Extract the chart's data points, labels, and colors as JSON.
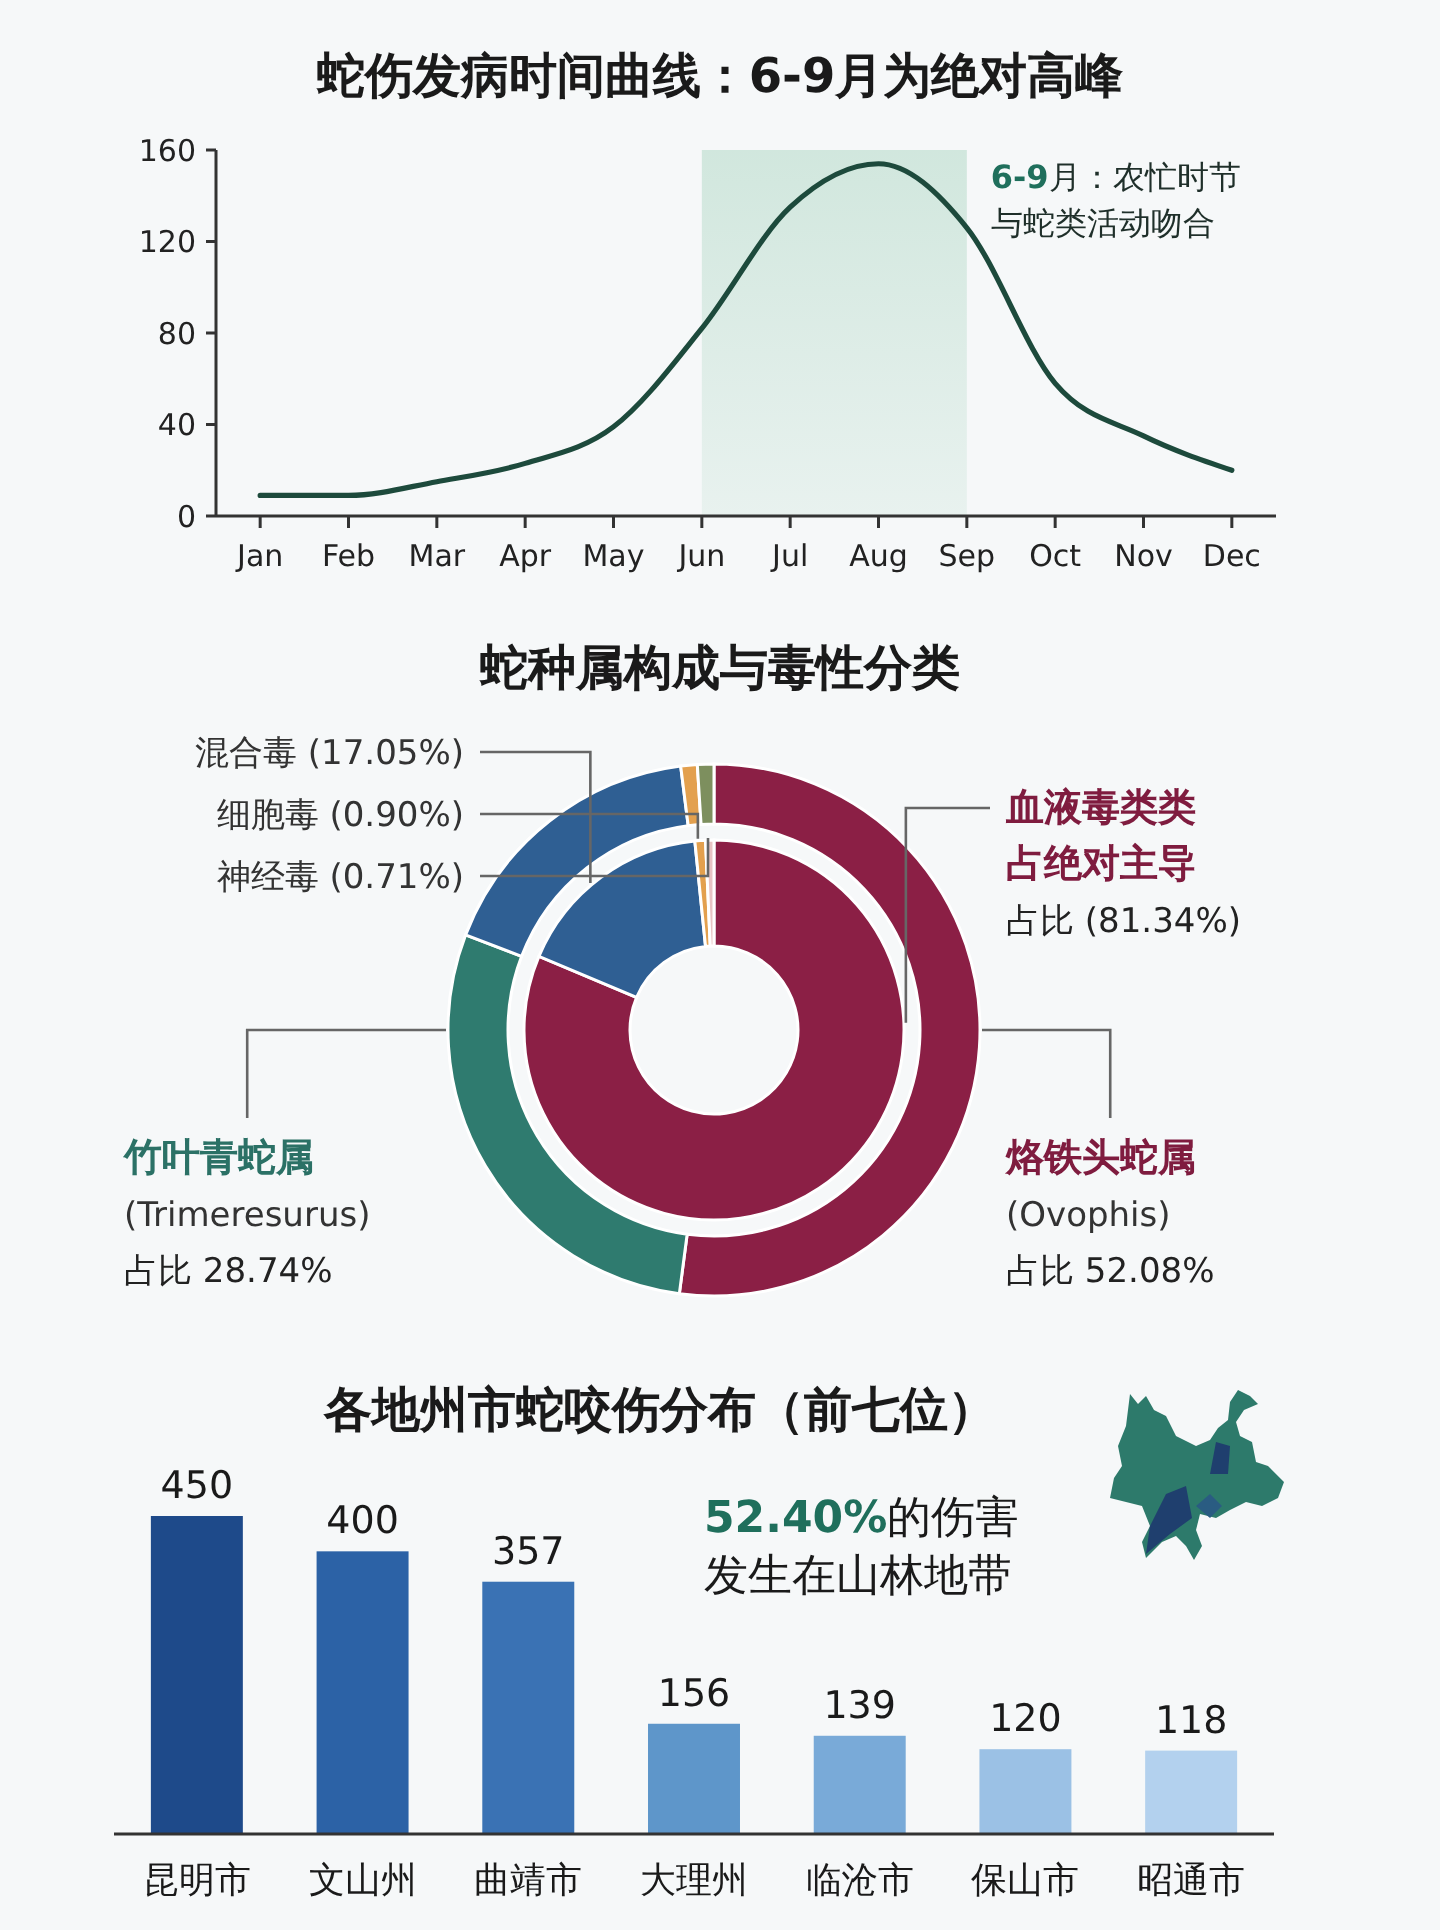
{
  "chart_data": [
    {
      "type": "line",
      "title": "蛇伤发病时间曲线：6-9月为绝对高峰",
      "categories": [
        "Jan",
        "Feb",
        "Mar",
        "Apr",
        "May",
        "Jun",
        "Jul",
        "Aug",
        "Sep",
        "Oct",
        "Nov",
        "Dec"
      ],
      "values": [
        9,
        9,
        15,
        23,
        39,
        82,
        135,
        154,
        126,
        58,
        35,
        20
      ],
      "color": "#1d4a3c",
      "line_style": "solid",
      "ylim": [
        0,
        160
      ],
      "yticks": [
        0,
        40,
        80,
        120,
        160
      ],
      "bands": [
        {
          "axis": "x",
          "from": "Jun",
          "to": "Sep",
          "label": "6-9月：农忙时节与蛇类活动吻合",
          "color": "#cfe6dc"
        }
      ]
    },
    {
      "type": "donut",
      "title": "蛇种属构成与毒性分类",
      "categories": [
        "烙铁头蛇属 (Ovophis)",
        "竹叶青蛇属 (Trimeresurus)",
        null,
        null,
        null
      ],
      "values": [
        52.08,
        28.74,
        17.18,
        1,
        1
      ],
      "colors": [
        "#8b1f45",
        "#2f7b6f",
        "#2f5f93",
        "#e3a04e",
        "#7d8f5e"
      ],
      "value_labels": [
        "占比 52.08%",
        "占比 28.74%",
        null,
        null,
        null
      ]
    },
    {
      "type": "donut",
      "categories": [
        "血液毒类类占绝对主导",
        "混合毒",
        "细胞毒",
        "神经毒"
      ],
      "values": [
        81.34,
        17.05,
        0.9,
        0.71
      ],
      "colors": [
        "#8b1f45",
        "#2f5f93",
        "#e3a04e",
        "#e8c4c4"
      ],
      "value_labels": [
        "占比 (81.34%)",
        "(17.05%)",
        "(0.90%)",
        "(0.71%)"
      ]
    },
    {
      "type": "bar",
      "title": "各地州市蛇咬伤分布（前七位）",
      "categories": [
        "昆明市",
        "文山州",
        "曲靖市",
        "大理州",
        "临沧市",
        "保山市",
        "昭通市"
      ],
      "values": [
        450,
        400,
        357,
        156,
        139,
        120,
        118
      ],
      "colors": [
        "#1e4a8a",
        "#2c62a6",
        "#3a72b4",
        "#5e96ca",
        "#79aad8",
        "#9bc1e5",
        "#b3d1ee"
      ],
      "data_labels": true,
      "annotations": [
        "52.40%的伤害发生在山林地带"
      ]
    }
  ]
}
